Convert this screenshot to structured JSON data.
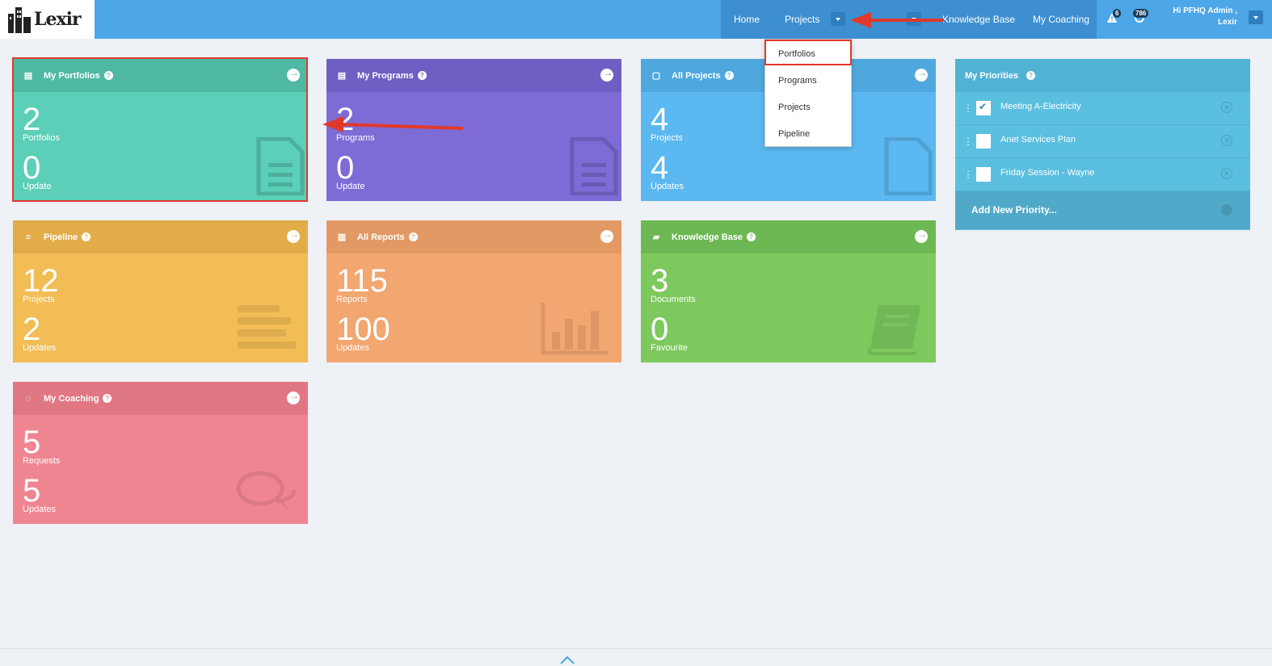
{
  "brand": {
    "name": "Lexir"
  },
  "nav": {
    "home": "Home",
    "projects": "Projects",
    "knowledge_base": "Knowledge Base",
    "my_coaching": "My Coaching",
    "alerts_count": "6",
    "updates_count": "786",
    "user_line1": "Hi PFHQ Admin ,",
    "user_line2": "Lexir"
  },
  "projects_dropdown": {
    "items": [
      "Portfolios",
      "Programs",
      "Projects",
      "Pipeline"
    ],
    "highlighted": "Portfolios"
  },
  "cards": [
    {
      "title": "My Portfolios",
      "icon": "document-icon",
      "color": "#5bcfb8",
      "head_color": "#4fb9a3",
      "primary_value": "2",
      "primary_label": "Portfolios",
      "secondary_value": "0",
      "secondary_label": "Update"
    },
    {
      "title": "My Programs",
      "icon": "document-icon",
      "color": "#7e6bd6",
      "head_color": "#6f5ec3",
      "primary_value": "2",
      "primary_label": "Programs",
      "secondary_value": "0",
      "secondary_label": "Update"
    },
    {
      "title": "All Projects",
      "icon": "page-icon",
      "color": "#5bb8f0",
      "head_color": "#4ea8de",
      "primary_value": "4",
      "primary_label": "Projects",
      "secondary_value": "4",
      "secondary_label": "Updates"
    },
    {
      "title": "Pipeline",
      "icon": "lines-icon",
      "color": "#f2bd55",
      "head_color": "#e2ad49",
      "primary_value": "12",
      "primary_label": "Projects",
      "secondary_value": "2",
      "secondary_label": "Updates"
    },
    {
      "title": "All Reports",
      "icon": "bar-chart-icon",
      "color": "#f2a670",
      "head_color": "#e39964",
      "primary_value": "115",
      "primary_label": "Reports",
      "secondary_value": "100",
      "secondary_label": "Updates"
    },
    {
      "title": "Knowledge Base",
      "icon": "book-icon",
      "color": "#7dc95e",
      "head_color": "#6db852",
      "primary_value": "3",
      "primary_label": "Documents",
      "secondary_value": "0",
      "secondary_label": "Favourite"
    },
    {
      "title": "My Coaching",
      "icon": "chat-icon",
      "color": "#ef8590",
      "head_color": "#df7882",
      "primary_value": "5",
      "primary_label": "Requests",
      "secondary_value": "5",
      "secondary_label": "Updates"
    }
  ],
  "priorities": {
    "title": "My Priorities",
    "items": [
      {
        "label": "Meeting A-Electricity",
        "checked": true
      },
      {
        "label": "Anet Services Plan",
        "checked": false
      },
      {
        "label": "Friday Session - Wayne",
        "checked": false
      }
    ],
    "add_label": "Add New Priority..."
  },
  "annotation_color": "#e0392b"
}
